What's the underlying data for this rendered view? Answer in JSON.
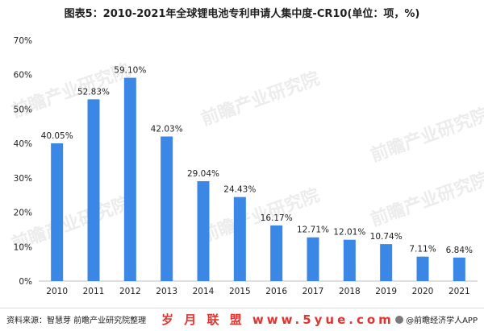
{
  "chart_data": {
    "type": "bar",
    "title": "图表5：2010-2021年全球锂电池专利申请人集中度-CR10(单位：项，%)",
    "categories": [
      "2010",
      "2011",
      "2012",
      "2013",
      "2014",
      "2015",
      "2016",
      "2017",
      "2018",
      "2019",
      "2020",
      "2021"
    ],
    "values": [
      40.05,
      52.83,
      59.1,
      42.03,
      29.04,
      24.43,
      16.17,
      12.71,
      12.01,
      10.74,
      7.11,
      6.84
    ],
    "value_labels": [
      "40.05%",
      "52.83%",
      "59.10%",
      "42.03%",
      "29.04%",
      "24.43%",
      "16.17%",
      "12.71%",
      "12.01%",
      "10.74%",
      "7.11%",
      "6.84%"
    ],
    "ylim": [
      0,
      70
    ],
    "yticks": [
      "0%",
      "10%",
      "20%",
      "30%",
      "40%",
      "50%",
      "60%",
      "70%"
    ],
    "grid": false,
    "bar_color": "#3a87e6"
  },
  "footer": {
    "source": "资料来源：智慧芽 前瞻产业研究院整理",
    "watermark_site": "岁 月 联 盟 www.5yue.com",
    "app": "@前瞻经济学人APP"
  },
  "watermarks": [
    "前瞻产业研究院",
    "前瞻产业研究院",
    "前瞻产业研究院",
    "前瞻产业研究院",
    "前瞻产业研究院",
    "前瞻产业研究院"
  ],
  "colors": {
    "axis": "#bfbfbf",
    "text": "#222222",
    "site_watermark": "#e3342f"
  }
}
